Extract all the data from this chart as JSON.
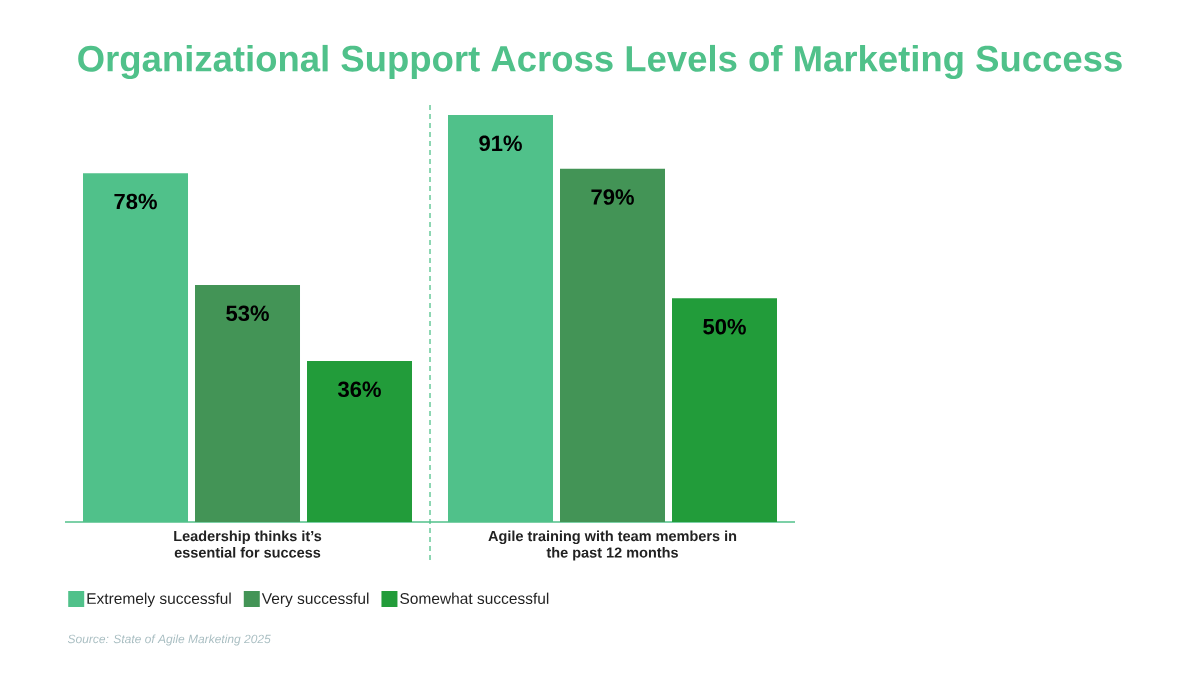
{
  "chart_data": {
    "type": "bar",
    "title": "Organizational Support Across Levels of Marketing Success",
    "categories": [
      "Leadership thinks it’s essential for success",
      "Agile training with team members in the past 12 months"
    ],
    "series": [
      {
        "name": "Extremely successful",
        "color": "#50c18a",
        "values": [
          78,
          91
        ],
        "value_labels": [
          "78%",
          "91%"
        ]
      },
      {
        "name": "Very successful",
        "color": "#439456",
        "values": [
          53,
          79
        ],
        "value_labels": [
          "53%",
          "79%"
        ]
      },
      {
        "name": "Somewhat successful",
        "color": "#229c3a",
        "values": [
          36,
          50
        ],
        "value_labels": [
          "36%",
          "50%"
        ]
      }
    ],
    "legend": "bottom left",
    "annotations": [
      "Source: State of Agile Marketing 2025"
    ]
  }
}
